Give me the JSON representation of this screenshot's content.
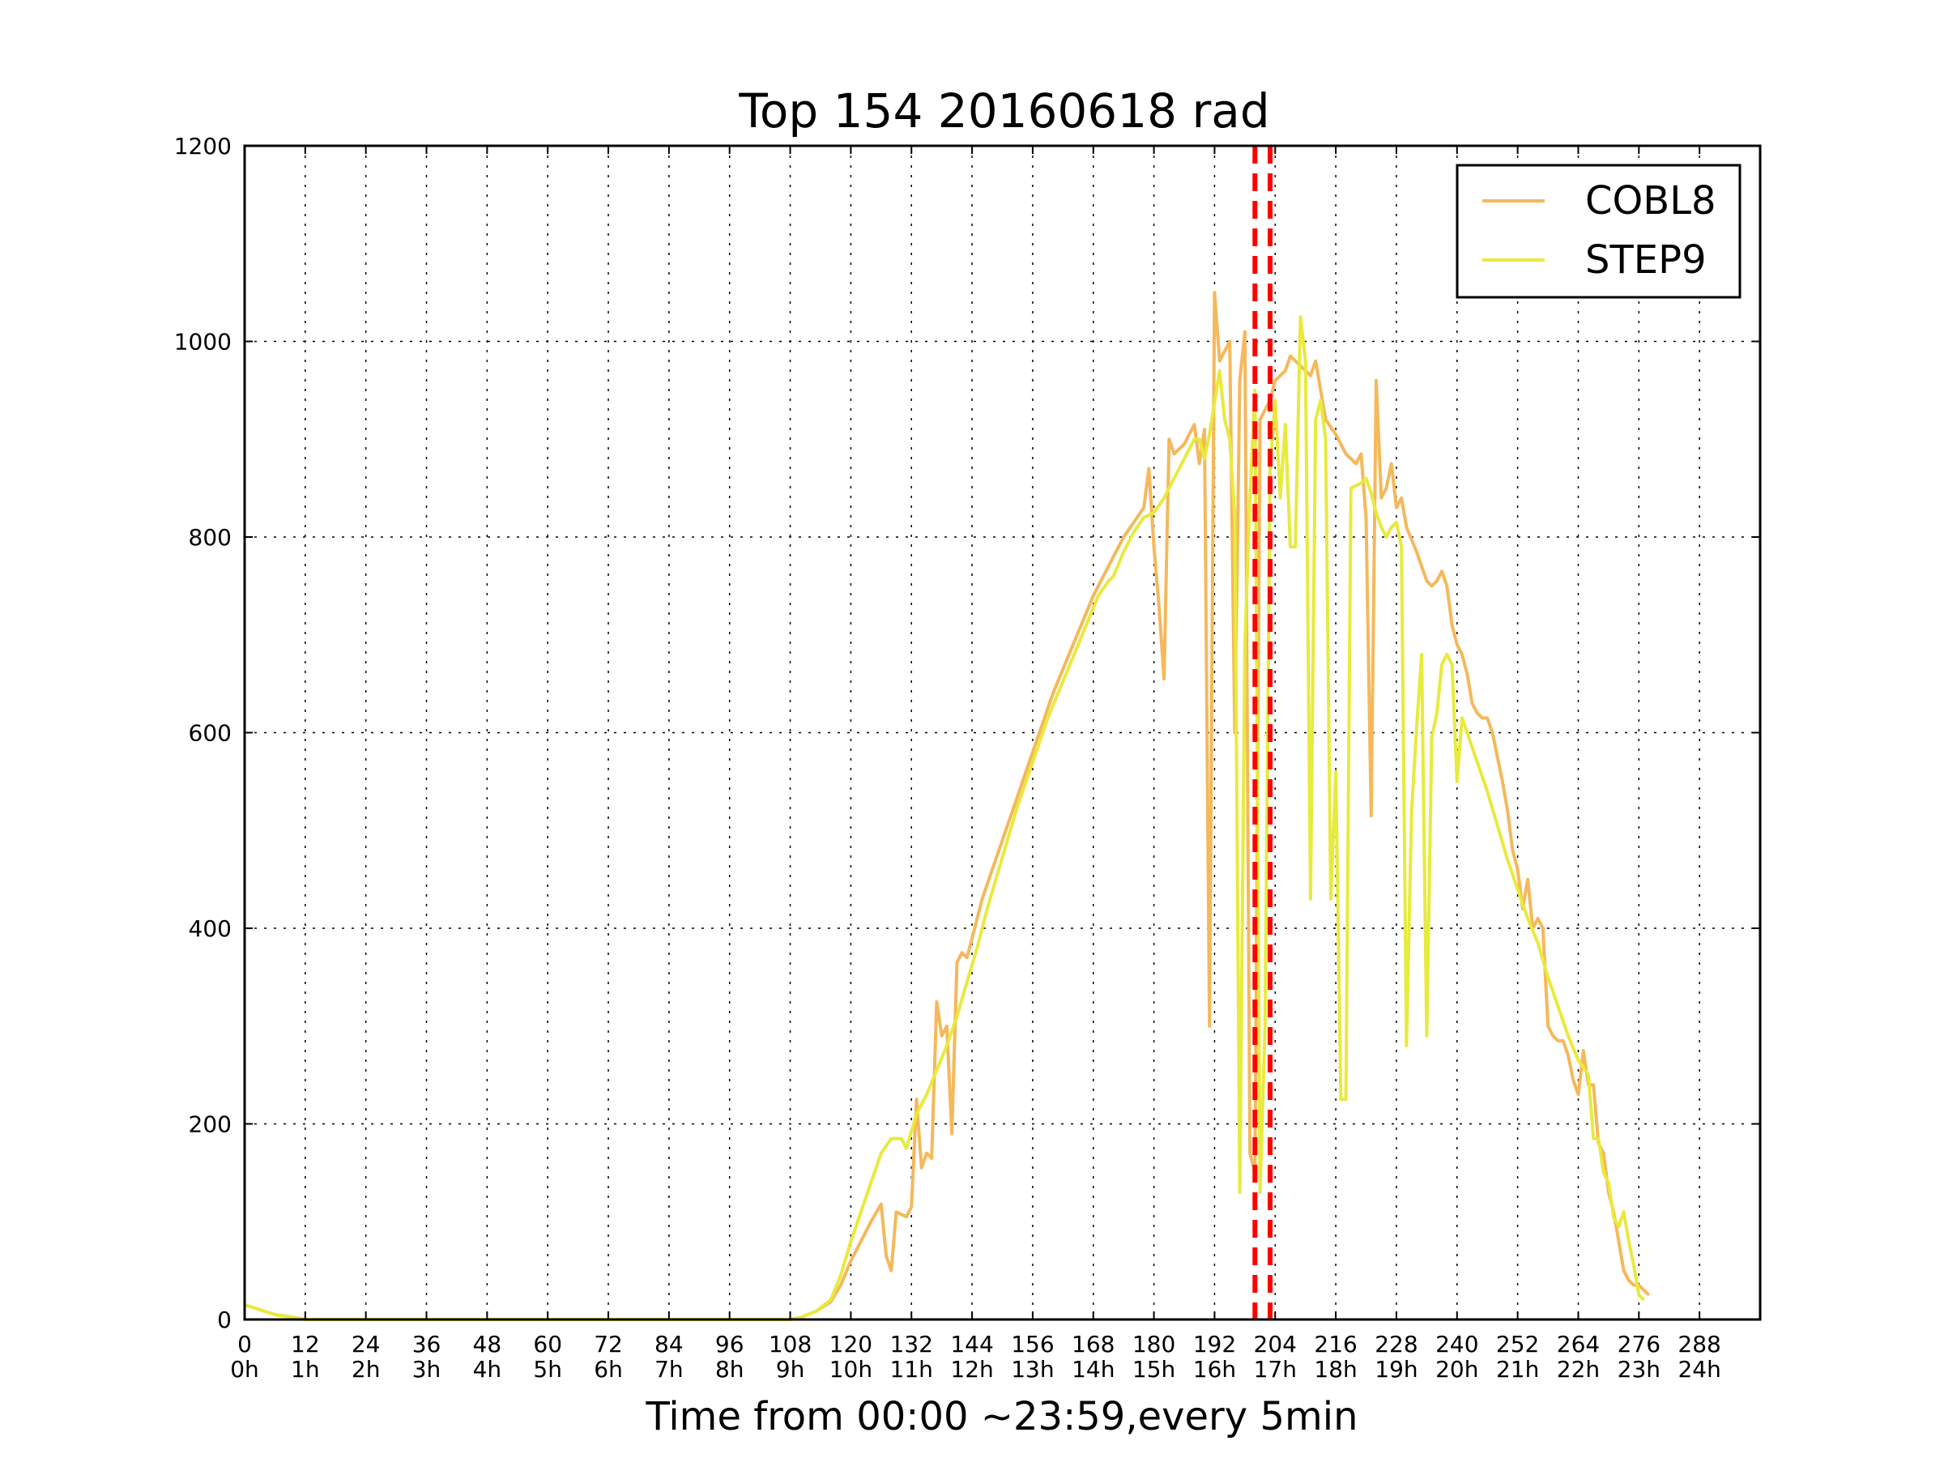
{
  "chart_data": {
    "type": "line",
    "title": "Top 154 20160618 rad",
    "xlabel": "Time from 00:00 ~23:59,every 5min",
    "ylabel": "",
    "xlim": [
      0,
      300
    ],
    "ylim": [
      0,
      1200
    ],
    "grid": true,
    "legend_position": "top-right",
    "x_ticks": [
      0,
      12,
      24,
      36,
      48,
      60,
      72,
      84,
      96,
      108,
      120,
      132,
      144,
      156,
      168,
      180,
      192,
      204,
      216,
      228,
      240,
      252,
      264,
      276,
      288
    ],
    "x_tick_labels_top": [
      "0",
      "12",
      "24",
      "36",
      "48",
      "60",
      "72",
      "84",
      "96",
      "108",
      "120",
      "132",
      "144",
      "156",
      "168",
      "180",
      "192",
      "204",
      "216",
      "228",
      "240",
      "252",
      "264",
      "276",
      "288"
    ],
    "x_tick_labels_bottom": [
      "0h",
      "1h",
      "2h",
      "3h",
      "4h",
      "5h",
      "6h",
      "7h",
      "8h",
      "9h",
      "10h",
      "11h",
      "12h",
      "13h",
      "14h",
      "15h",
      "16h",
      "17h",
      "18h",
      "19h",
      "20h",
      "21h",
      "22h",
      "23h",
      "24h"
    ],
    "y_ticks": [
      0,
      200,
      400,
      600,
      800,
      1000,
      1200
    ],
    "y_tick_labels": [
      "0",
      "200",
      "400",
      "600",
      "800",
      "1000",
      "1200"
    ],
    "vertical_markers": [
      {
        "x": 200,
        "color": "#ff0000",
        "style": "dashed"
      },
      {
        "x": 203,
        "color": "#ff0000",
        "style": "dashed"
      }
    ],
    "series": [
      {
        "name": "COBL8",
        "color": "#f5b85a",
        "points": [
          [
            0,
            15
          ],
          [
            3,
            10
          ],
          [
            6,
            5
          ],
          [
            10,
            2
          ],
          [
            12,
            0
          ],
          [
            108,
            0
          ],
          [
            110,
            2
          ],
          [
            113,
            8
          ],
          [
            116,
            18
          ],
          [
            118,
            35
          ],
          [
            120,
            60
          ],
          [
            122,
            80
          ],
          [
            124,
            100
          ],
          [
            126,
            118
          ],
          [
            127,
            65
          ],
          [
            128,
            50
          ],
          [
            129,
            110
          ],
          [
            131,
            105
          ],
          [
            132,
            115
          ],
          [
            133,
            225
          ],
          [
            134,
            155
          ],
          [
            135,
            170
          ],
          [
            136,
            165
          ],
          [
            137,
            325
          ],
          [
            138,
            290
          ],
          [
            139,
            300
          ],
          [
            140,
            190
          ],
          [
            141,
            365
          ],
          [
            142,
            375
          ],
          [
            143,
            370
          ],
          [
            144,
            390
          ],
          [
            146,
            430
          ],
          [
            148,
            460
          ],
          [
            150,
            490
          ],
          [
            152,
            520
          ],
          [
            154,
            550
          ],
          [
            156,
            580
          ],
          [
            158,
            610
          ],
          [
            160,
            640
          ],
          [
            162,
            665
          ],
          [
            164,
            690
          ],
          [
            166,
            715
          ],
          [
            168,
            740
          ],
          [
            170,
            760
          ],
          [
            172,
            780
          ],
          [
            174,
            800
          ],
          [
            176,
            815
          ],
          [
            178,
            830
          ],
          [
            179,
            870
          ],
          [
            180,
            790
          ],
          [
            181,
            730
          ],
          [
            182,
            655
          ],
          [
            183,
            900
          ],
          [
            184,
            885
          ],
          [
            186,
            895
          ],
          [
            188,
            915
          ],
          [
            189,
            875
          ],
          [
            190,
            910
          ],
          [
            191,
            300
          ],
          [
            192,
            1050
          ],
          [
            193,
            980
          ],
          [
            195,
            1000
          ],
          [
            196,
            600
          ],
          [
            197,
            960
          ],
          [
            198,
            1010
          ],
          [
            199,
            170
          ],
          [
            200,
            150
          ],
          [
            201,
            920
          ],
          [
            203,
            940
          ],
          [
            204,
            960
          ],
          [
            206,
            970
          ],
          [
            207,
            985
          ],
          [
            209,
            975
          ],
          [
            211,
            965
          ],
          [
            212,
            980
          ],
          [
            213,
            950
          ],
          [
            214,
            920
          ],
          [
            216,
            905
          ],
          [
            218,
            885
          ],
          [
            220,
            875
          ],
          [
            221,
            885
          ],
          [
            222,
            820
          ],
          [
            223,
            515
          ],
          [
            224,
            960
          ],
          [
            225,
            840
          ],
          [
            226,
            850
          ],
          [
            227,
            875
          ],
          [
            228,
            830
          ],
          [
            229,
            840
          ],
          [
            230,
            810
          ],
          [
            232,
            785
          ],
          [
            234,
            755
          ],
          [
            235,
            750
          ],
          [
            236,
            755
          ],
          [
            237,
            765
          ],
          [
            238,
            750
          ],
          [
            239,
            710
          ],
          [
            240,
            690
          ],
          [
            241,
            680
          ],
          [
            242,
            660
          ],
          [
            243,
            630
          ],
          [
            244,
            620
          ],
          [
            245,
            615
          ],
          [
            246,
            615
          ],
          [
            247,
            600
          ],
          [
            248,
            575
          ],
          [
            249,
            550
          ],
          [
            250,
            520
          ],
          [
            251,
            480
          ],
          [
            252,
            460
          ],
          [
            253,
            420
          ],
          [
            254,
            450
          ],
          [
            255,
            400
          ],
          [
            256,
            410
          ],
          [
            257,
            400
          ],
          [
            258,
            300
          ],
          [
            259,
            290
          ],
          [
            260,
            285
          ],
          [
            261,
            285
          ],
          [
            262,
            270
          ],
          [
            263,
            245
          ],
          [
            264,
            230
          ],
          [
            265,
            275
          ],
          [
            266,
            240
          ],
          [
            267,
            240
          ],
          [
            268,
            180
          ],
          [
            269,
            170
          ],
          [
            270,
            130
          ],
          [
            271,
            110
          ],
          [
            272,
            80
          ],
          [
            273,
            50
          ],
          [
            274,
            40
          ],
          [
            275,
            35
          ],
          [
            276,
            35
          ],
          [
            277,
            30
          ],
          [
            278,
            25
          ]
        ]
      },
      {
        "name": "STEP9",
        "color": "#e8ea3c",
        "points": [
          [
            0,
            15
          ],
          [
            3,
            10
          ],
          [
            6,
            5
          ],
          [
            10,
            2
          ],
          [
            12,
            0
          ],
          [
            108,
            0
          ],
          [
            110,
            2
          ],
          [
            113,
            8
          ],
          [
            116,
            20
          ],
          [
            118,
            45
          ],
          [
            120,
            80
          ],
          [
            122,
            110
          ],
          [
            124,
            140
          ],
          [
            126,
            170
          ],
          [
            128,
            185
          ],
          [
            130,
            185
          ],
          [
            131,
            175
          ],
          [
            133,
            210
          ],
          [
            135,
            230
          ],
          [
            137,
            255
          ],
          [
            139,
            280
          ],
          [
            141,
            310
          ],
          [
            143,
            345
          ],
          [
            145,
            380
          ],
          [
            147,
            420
          ],
          [
            149,
            455
          ],
          [
            151,
            490
          ],
          [
            153,
            525
          ],
          [
            155,
            555
          ],
          [
            157,
            585
          ],
          [
            159,
            615
          ],
          [
            161,
            640
          ],
          [
            163,
            665
          ],
          [
            165,
            690
          ],
          [
            167,
            715
          ],
          [
            169,
            740
          ],
          [
            171,
            755
          ],
          [
            172,
            760
          ],
          [
            174,
            785
          ],
          [
            176,
            805
          ],
          [
            178,
            820
          ],
          [
            180,
            825
          ],
          [
            182,
            840
          ],
          [
            184,
            860
          ],
          [
            186,
            880
          ],
          [
            188,
            900
          ],
          [
            189,
            900
          ],
          [
            190,
            880
          ],
          [
            191,
            905
          ],
          [
            193,
            970
          ],
          [
            194,
            920
          ],
          [
            195,
            900
          ],
          [
            196,
            820
          ],
          [
            197,
            130
          ],
          [
            198,
            690
          ],
          [
            199,
            840
          ],
          [
            200,
            950
          ],
          [
            201,
            130
          ],
          [
            202,
            300
          ],
          [
            203,
            870
          ],
          [
            204,
            940
          ],
          [
            205,
            840
          ],
          [
            206,
            915
          ],
          [
            207,
            790
          ],
          [
            208,
            790
          ],
          [
            209,
            1025
          ],
          [
            210,
            980
          ],
          [
            211,
            430
          ],
          [
            212,
            920
          ],
          [
            213,
            940
          ],
          [
            214,
            900
          ],
          [
            215,
            430
          ],
          [
            216,
            560
          ],
          [
            217,
            225
          ],
          [
            218,
            225
          ],
          [
            219,
            850
          ],
          [
            221,
            855
          ],
          [
            222,
            860
          ],
          [
            223,
            845
          ],
          [
            224,
            825
          ],
          [
            225,
            810
          ],
          [
            226,
            800
          ],
          [
            227,
            810
          ],
          [
            228,
            815
          ],
          [
            229,
            790
          ],
          [
            230,
            280
          ],
          [
            231,
            520
          ],
          [
            232,
            605
          ],
          [
            233,
            680
          ],
          [
            234,
            290
          ],
          [
            235,
            595
          ],
          [
            236,
            620
          ],
          [
            237,
            670
          ],
          [
            238,
            680
          ],
          [
            239,
            670
          ],
          [
            240,
            550
          ],
          [
            241,
            615
          ],
          [
            242,
            600
          ],
          [
            244,
            570
          ],
          [
            246,
            540
          ],
          [
            248,
            505
          ],
          [
            250,
            470
          ],
          [
            252,
            440
          ],
          [
            254,
            410
          ],
          [
            256,
            385
          ],
          [
            258,
            350
          ],
          [
            260,
            320
          ],
          [
            262,
            290
          ],
          [
            264,
            265
          ],
          [
            266,
            250
          ],
          [
            267,
            185
          ],
          [
            268,
            185
          ],
          [
            269,
            150
          ],
          [
            270,
            140
          ],
          [
            271,
            105
          ],
          [
            272,
            95
          ],
          [
            273,
            110
          ],
          [
            274,
            80
          ],
          [
            275,
            55
          ],
          [
            276,
            25
          ],
          [
            277,
            20
          ]
        ]
      }
    ]
  }
}
